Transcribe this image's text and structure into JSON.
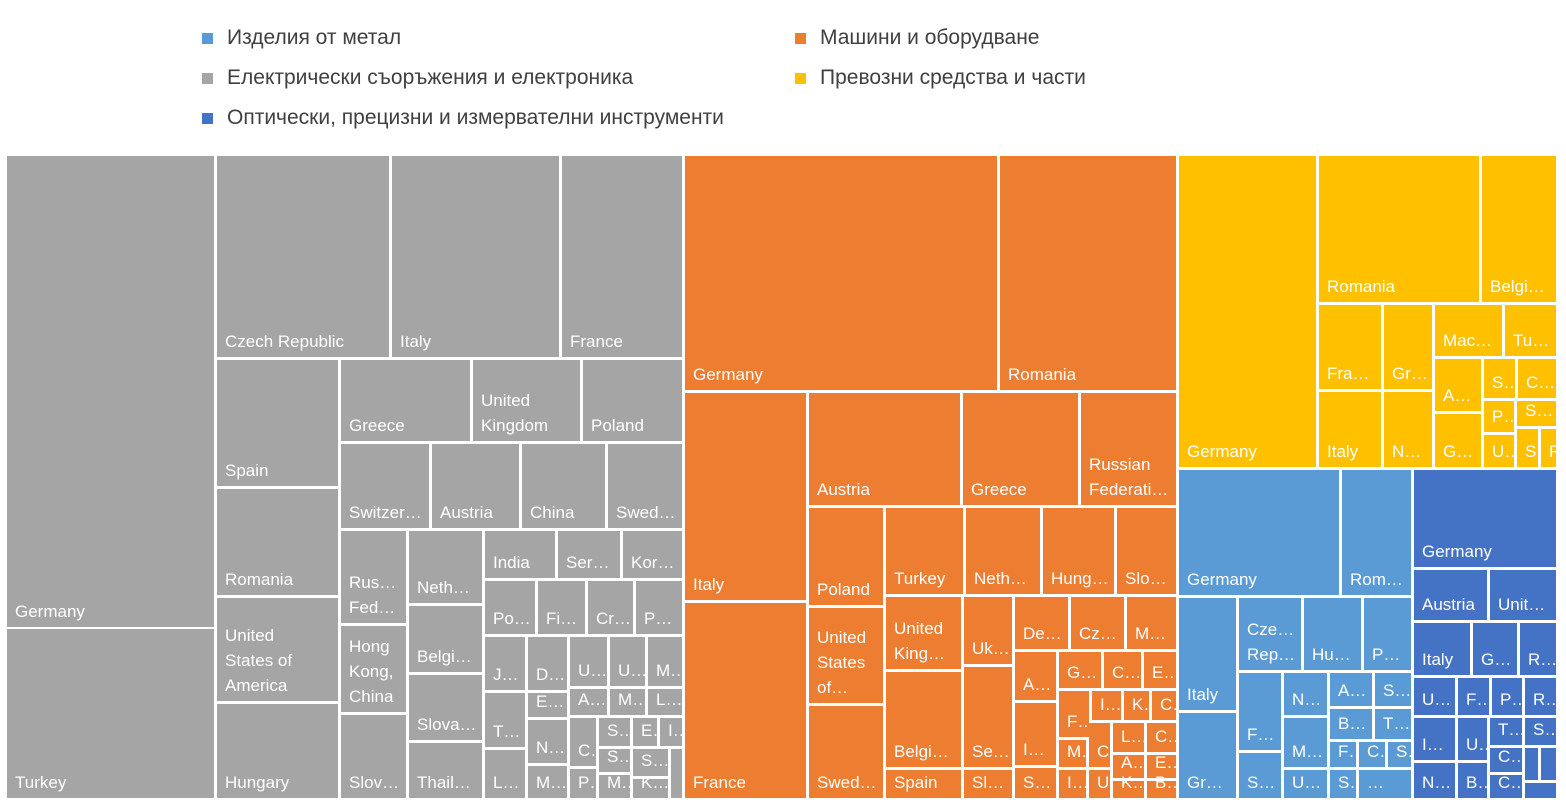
{
  "chart_data": {
    "type": "treemap",
    "colors": {
      "Изделия от метал": "#5B9BD5",
      "Машини и оборудване": "#ED7D31",
      "Електрически съоръжения и електроника": "#A5A5A5",
      "Превозни средства и части": "#FFC000",
      "Оптически, прецизни и измервателни инструменти": "#4472C4"
    },
    "legend": {
      "placement": "top",
      "items": [
        "Изделия от метал",
        "Машини и оборудване",
        "Електрически съоръжения и електроника",
        "Превозни средства и части",
        "Оптически, прецизни и измервателни инструменти"
      ]
    },
    "series": [
      {
        "name": "Електрически съоръжения и електроника",
        "tiles": [
          {
            "label": "Germany"
          },
          {
            "label": "Turkey"
          },
          {
            "label": "Czech Republic"
          },
          {
            "label": "Italy"
          },
          {
            "label": "France"
          },
          {
            "label": "Spain"
          },
          {
            "label": "Greece"
          },
          {
            "label": "United Kingdom"
          },
          {
            "label": "Poland"
          },
          {
            "label": "Romania"
          },
          {
            "label": "Switzer…"
          },
          {
            "label": "Austria"
          },
          {
            "label": "China"
          },
          {
            "label": "Swed…"
          },
          {
            "label": "United States of America"
          },
          {
            "label": "Rus… Fed…"
          },
          {
            "label": "Neth…"
          },
          {
            "label": "India"
          },
          {
            "label": "Ser…"
          },
          {
            "label": "Kor…"
          },
          {
            "label": "Hong Kong, China"
          },
          {
            "label": "Belgi…"
          },
          {
            "label": "Po…"
          },
          {
            "label": "Fi…"
          },
          {
            "label": "Cr…"
          },
          {
            "label": "P…"
          },
          {
            "label": "J…"
          },
          {
            "label": "D…"
          },
          {
            "label": "U…"
          },
          {
            "label": "U…"
          },
          {
            "label": "M…"
          },
          {
            "label": "E…"
          },
          {
            "label": "A…"
          },
          {
            "label": "M…"
          },
          {
            "label": "L…"
          },
          {
            "label": "Hungary"
          },
          {
            "label": "Slova…"
          },
          {
            "label": "T…"
          },
          {
            "label": "N…"
          },
          {
            "label": "C…"
          },
          {
            "label": "S…"
          },
          {
            "label": "E…"
          },
          {
            "label": "I…"
          },
          {
            "label": "Slov…"
          },
          {
            "label": "Thail…"
          },
          {
            "label": "L…"
          },
          {
            "label": "M…"
          },
          {
            "label": "P…"
          },
          {
            "label": "S…"
          },
          {
            "label": "S…"
          },
          {
            "label": "M…"
          },
          {
            "label": "K…"
          },
          {
            "label": ""
          }
        ]
      },
      {
        "name": "Машини и оборудване",
        "tiles": [
          {
            "label": "Germany"
          },
          {
            "label": "Romania"
          },
          {
            "label": "Italy"
          },
          {
            "label": "France"
          },
          {
            "label": "Austria"
          },
          {
            "label": "Greece"
          },
          {
            "label": "Russian Federati…"
          },
          {
            "label": "Poland"
          },
          {
            "label": "Turkey"
          },
          {
            "label": "Neth…"
          },
          {
            "label": "Hung…"
          },
          {
            "label": "Slo…"
          },
          {
            "label": "United States of…"
          },
          {
            "label": "United King…"
          },
          {
            "label": "Uk…"
          },
          {
            "label": "De…"
          },
          {
            "label": "Cz…"
          },
          {
            "label": "M…"
          },
          {
            "label": "G…"
          },
          {
            "label": "C…"
          },
          {
            "label": "E…"
          },
          {
            "label": "A…"
          },
          {
            "label": "Belgi…"
          },
          {
            "label": "Se…"
          },
          {
            "label": "F…"
          },
          {
            "label": "I…"
          },
          {
            "label": "K…"
          },
          {
            "label": "C…"
          },
          {
            "label": "I…"
          },
          {
            "label": "M…"
          },
          {
            "label": "C…"
          },
          {
            "label": "L…"
          },
          {
            "label": "C…"
          },
          {
            "label": "A…"
          },
          {
            "label": "E…"
          },
          {
            "label": "Swed…"
          },
          {
            "label": "Spain"
          },
          {
            "label": "Sl…"
          },
          {
            "label": "S…"
          },
          {
            "label": "I…"
          },
          {
            "label": "U…"
          },
          {
            "label": "K…"
          },
          {
            "label": "B…"
          }
        ]
      },
      {
        "name": "Превозни средства и части",
        "tiles": [
          {
            "label": "Germany"
          },
          {
            "label": "Romania"
          },
          {
            "label": "Belgi…"
          },
          {
            "label": "Fra…"
          },
          {
            "label": "Gr…"
          },
          {
            "label": "Mac…"
          },
          {
            "label": "Tu…"
          },
          {
            "label": "A…"
          },
          {
            "label": "S…"
          },
          {
            "label": "C…"
          },
          {
            "label": "P…"
          },
          {
            "label": "S…"
          },
          {
            "label": "Italy"
          },
          {
            "label": "N…"
          },
          {
            "label": "G…"
          },
          {
            "label": "U…"
          },
          {
            "label": "S…"
          },
          {
            "label": "R…"
          }
        ]
      },
      {
        "name": "Изделия от метал",
        "tiles": [
          {
            "label": "Germany"
          },
          {
            "label": "Rom…"
          },
          {
            "label": "Italy"
          },
          {
            "label": "Gr…"
          },
          {
            "label": "Cze… Rep…"
          },
          {
            "label": "Hu…"
          },
          {
            "label": "P…"
          },
          {
            "label": "F…"
          },
          {
            "label": "S…"
          },
          {
            "label": "N…"
          },
          {
            "label": "A…"
          },
          {
            "label": "S…"
          },
          {
            "label": "M…"
          },
          {
            "label": "B…"
          },
          {
            "label": "T…"
          },
          {
            "label": "U…"
          },
          {
            "label": "F…"
          },
          {
            "label": "C…"
          },
          {
            "label": "S…"
          },
          {
            "label": "S…"
          },
          {
            "label": "…"
          }
        ]
      },
      {
        "name": "Оптически, прецизни и измервателни инструменти",
        "tiles": [
          {
            "label": "Germany"
          },
          {
            "label": "Austria"
          },
          {
            "label": "Unit…"
          },
          {
            "label": "Italy"
          },
          {
            "label": "G…"
          },
          {
            "label": "R…"
          },
          {
            "label": "U…"
          },
          {
            "label": "F…"
          },
          {
            "label": "P…"
          },
          {
            "label": "R…"
          },
          {
            "label": "I…"
          },
          {
            "label": "U…"
          },
          {
            "label": "T…"
          },
          {
            "label": "S…"
          },
          {
            "label": "C…"
          },
          {
            "label": "N…"
          },
          {
            "label": "B…"
          },
          {
            "label": "C…"
          },
          {
            "label": ""
          },
          {
            "label": ""
          },
          {
            "label": ""
          }
        ]
      }
    ]
  }
}
